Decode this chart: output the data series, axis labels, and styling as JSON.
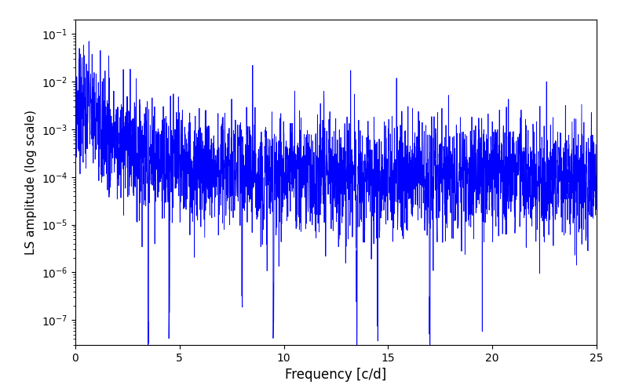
{
  "title": "",
  "xlabel": "Frequency [c/d]",
  "ylabel": "LS amplitude (log scale)",
  "xlim": [
    0,
    25
  ],
  "ylim": [
    3e-08,
    0.2
  ],
  "line_color": "#0000FF",
  "line_width": 0.6,
  "freq_min": 0.0,
  "freq_max": 25.0,
  "n_points": 3000,
  "seed": 7,
  "background_color": "#ffffff",
  "figsize": [
    8.0,
    5.0
  ],
  "dpi": 100
}
